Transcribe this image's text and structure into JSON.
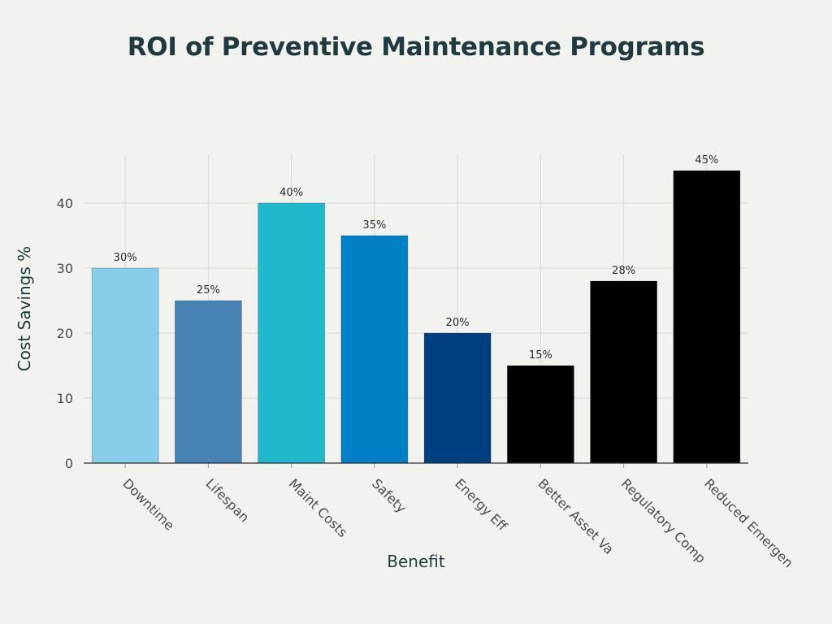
{
  "chart_data": {
    "type": "bar",
    "title": "ROI of Preventive Maintenance Programs",
    "xlabel": "Benefit",
    "ylabel": "Cost Savings %",
    "categories": [
      "Downtime",
      "Lifespan",
      "Maint Costs",
      "Safety",
      "Energy Eff",
      "Better Asset Va",
      "Regulatory Comp",
      "Reduced Emergen"
    ],
    "values": [
      30,
      25,
      40,
      35,
      20,
      15,
      28,
      45
    ],
    "data_labels": [
      "30%",
      "25%",
      "40%",
      "35%",
      "20%",
      "15%",
      "28%",
      "45%"
    ],
    "colors": [
      "#87ceeb",
      "#4682b4",
      "#1fb8cd",
      "#0080c6",
      "#003f7f",
      "#000000",
      "#000000",
      "#000000"
    ],
    "yticks": [
      0,
      10,
      20,
      30,
      40
    ],
    "ylim": [
      0,
      47.5
    ],
    "grid": true,
    "legend": "none"
  }
}
